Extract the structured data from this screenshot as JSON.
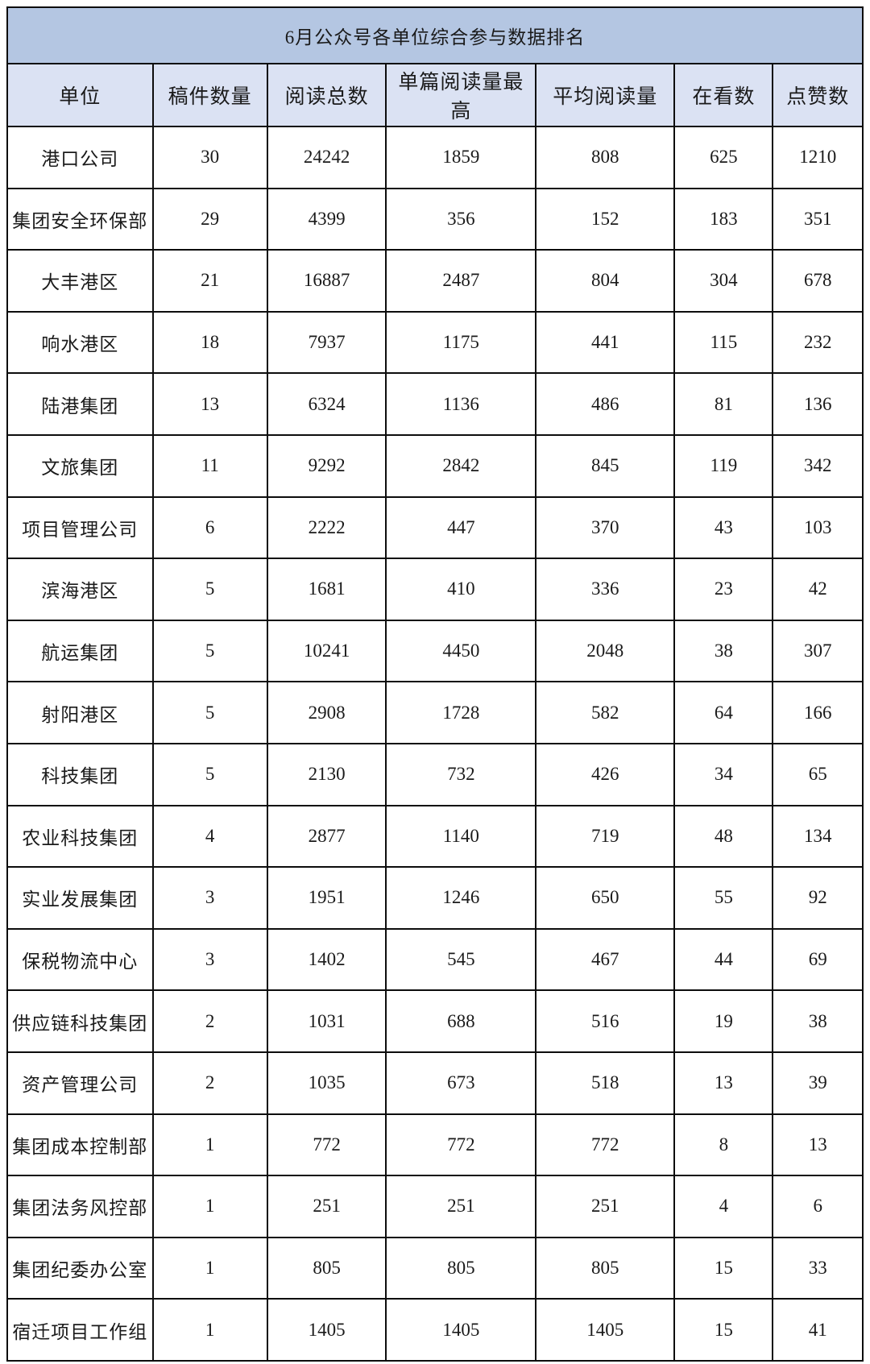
{
  "table": {
    "title": "6月公众号各单位综合参与数据排名",
    "columns": [
      "单位",
      "稿件数量",
      "阅读总数",
      "单篇阅读量最高",
      "平均阅读量",
      "在看数",
      "点赞数"
    ],
    "rows": [
      [
        "港口公司",
        30,
        24242,
        1859,
        808,
        625,
        1210
      ],
      [
        "集团安全环保部",
        29,
        4399,
        356,
        152,
        183,
        351
      ],
      [
        "大丰港区",
        21,
        16887,
        2487,
        804,
        304,
        678
      ],
      [
        "响水港区",
        18,
        7937,
        1175,
        441,
        115,
        232
      ],
      [
        "陆港集团",
        13,
        6324,
        1136,
        486,
        81,
        136
      ],
      [
        "文旅集团",
        11,
        9292,
        2842,
        845,
        119,
        342
      ],
      [
        "项目管理公司",
        6,
        2222,
        447,
        370,
        43,
        103
      ],
      [
        "滨海港区",
        5,
        1681,
        410,
        336,
        23,
        42
      ],
      [
        "航运集团",
        5,
        10241,
        4450,
        2048,
        38,
        307
      ],
      [
        "射阳港区",
        5,
        2908,
        1728,
        582,
        64,
        166
      ],
      [
        "科技集团",
        5,
        2130,
        732,
        426,
        34,
        65
      ],
      [
        "农业科技集团",
        4,
        2877,
        1140,
        719,
        48,
        134
      ],
      [
        "实业发展集团",
        3,
        1951,
        1246,
        650,
        55,
        92
      ],
      [
        "保税物流中心",
        3,
        1402,
        545,
        467,
        44,
        69
      ],
      [
        "供应链科技集团",
        2,
        1031,
        688,
        516,
        19,
        38
      ],
      [
        "资产管理公司",
        2,
        1035,
        673,
        518,
        13,
        39
      ],
      [
        "集团成本控制部",
        1,
        772,
        772,
        772,
        8,
        13
      ],
      [
        "集团法务风控部",
        1,
        251,
        251,
        251,
        4,
        6
      ],
      [
        "集团纪委办公室",
        1,
        805,
        805,
        805,
        15,
        33
      ],
      [
        "宿迁项目工作组",
        1,
        1405,
        1405,
        1405,
        15,
        41
      ]
    ],
    "column_widths_pct": [
      17.0,
      13.4,
      13.9,
      17.5,
      16.2,
      11.5,
      10.5
    ],
    "colors": {
      "title_bg": "#B4C6E2",
      "header_bg": "#DBE2F3",
      "border": "#0D0D0D",
      "text": "#1A1A1A",
      "row_bg": "#FFFFFF"
    }
  }
}
